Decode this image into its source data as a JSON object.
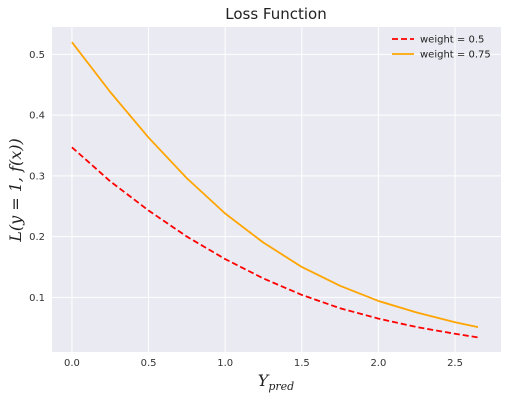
{
  "chart_data": {
    "type": "line",
    "title": "Loss Function",
    "xlabel": {
      "base": "Y",
      "sub": "pred"
    },
    "ylabel": "L(y = 1, f(x))",
    "xlim": [
      -0.13,
      2.8
    ],
    "ylim": [
      0.01,
      0.545
    ],
    "xticks": [
      0.0,
      0.5,
      1.0,
      1.5,
      2.0,
      2.5
    ],
    "xtick_labels": [
      "0.0",
      "0.5",
      "1.0",
      "1.5",
      "2.0",
      "2.5"
    ],
    "yticks": [
      0.1,
      0.2,
      0.3,
      0.4,
      0.5
    ],
    "ytick_labels": [
      "0.1",
      "0.2",
      "0.3",
      "0.4",
      "0.5"
    ],
    "grid": true,
    "legend_position": "top-right",
    "background_color": "#eaeaf2",
    "x": [
      0.0,
      0.25,
      0.5,
      0.75,
      1.0,
      1.25,
      1.5,
      1.75,
      2.0,
      2.25,
      2.5,
      2.65
    ],
    "series": [
      {
        "name": "weight = 0.5",
        "color": "#ff0000",
        "dash": "dashed",
        "values": [
          0.347,
          0.291,
          0.243,
          0.2,
          0.163,
          0.131,
          0.104,
          0.082,
          0.065,
          0.051,
          0.04,
          0.034
        ]
      },
      {
        "name": "weight = 0.75",
        "color": "#ffa500",
        "dash": "solid",
        "values": [
          0.52,
          0.438,
          0.363,
          0.296,
          0.238,
          0.19,
          0.15,
          0.119,
          0.094,
          0.075,
          0.059,
          0.051
        ]
      }
    ]
  }
}
